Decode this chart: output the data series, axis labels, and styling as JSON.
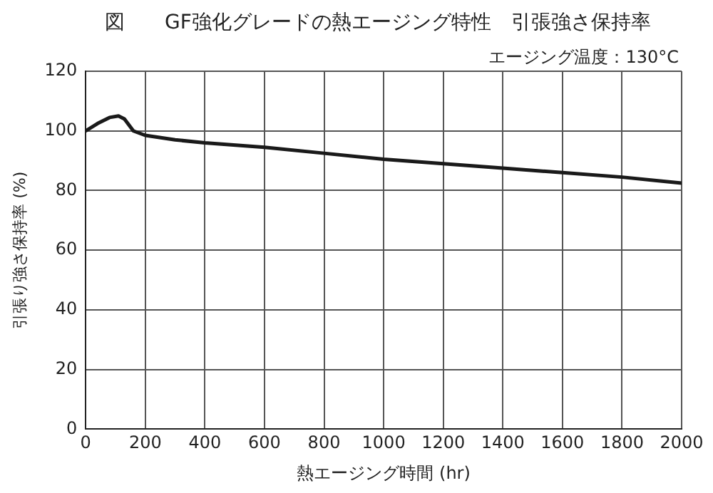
{
  "chart_data": {
    "type": "line",
    "title": "図　　GF強化グレードの熱エージング特性　引張強さ保持率",
    "subtitle": "エージング温度：130°C",
    "xlabel": "熱エージング時間 (hr)",
    "ylabel": "引張り強さ保持率 (%)",
    "x": [
      0,
      40,
      80,
      110,
      130,
      160,
      200,
      300,
      400,
      600,
      800,
      1000,
      1200,
      1400,
      1600,
      1800,
      2000
    ],
    "series": [
      {
        "color": "#1a1a1a",
        "values": [
          100,
          102.5,
          104.5,
          105,
          104,
          100,
          98.5,
          97,
          96,
          94.5,
          92.5,
          90.5,
          89,
          87.5,
          86,
          84.5,
          82.5
        ]
      }
    ],
    "xlim": [
      0,
      2000
    ],
    "xticks": [
      0,
      200,
      400,
      600,
      800,
      1000,
      1200,
      1400,
      1600,
      1800,
      2000
    ],
    "ylim": [
      0,
      120
    ],
    "yticks": [
      0,
      20,
      40,
      60,
      80,
      100,
      120
    ],
    "grid": true,
    "legend": false,
    "marker": "none",
    "line_style": "solid"
  }
}
